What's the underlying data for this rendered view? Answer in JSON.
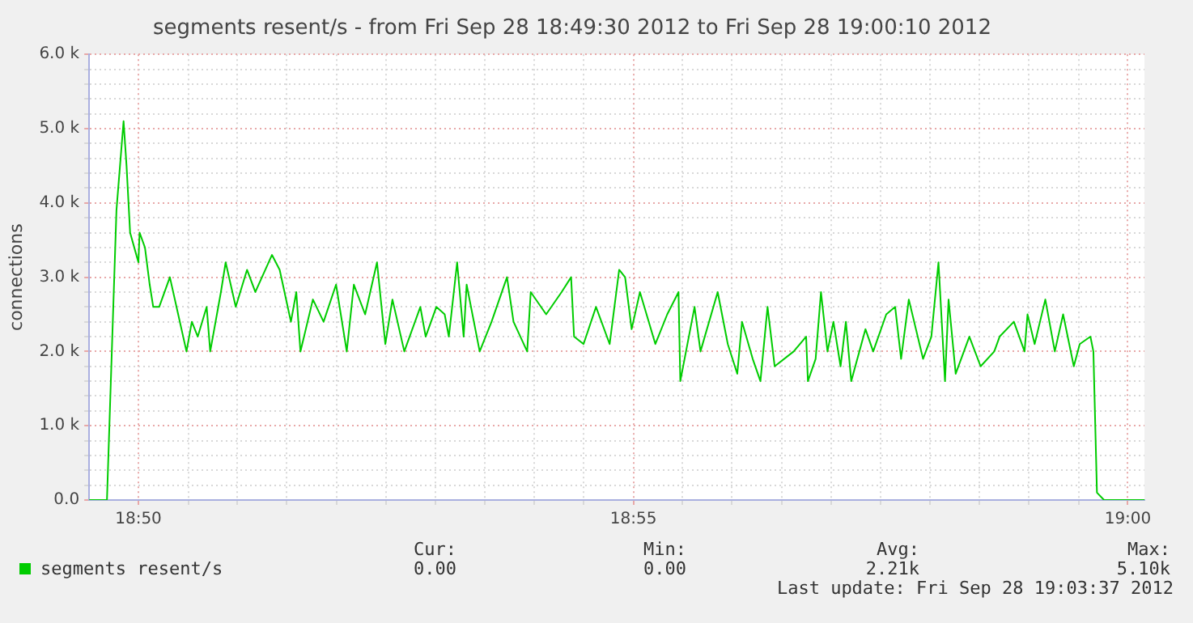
{
  "chart_data": {
    "type": "line",
    "title": "segments resent/s - from Fri Sep 28 18:49:30 2012 to Fri Sep 28 19:00:10 2012",
    "ylabel": "connections",
    "legend": "bottom left",
    "grid": true,
    "marker": "none",
    "line_style": "solid",
    "xlim": [
      18.825,
      19.0028
    ],
    "xticks": [
      {
        "value": 18.8333,
        "label": "18:50"
      },
      {
        "value": 18.8417,
        "label": null
      },
      {
        "value": 18.85,
        "label": null
      },
      {
        "value": 18.8583,
        "label": null
      },
      {
        "value": 18.8667,
        "label": null
      },
      {
        "value": 18.875,
        "label": null
      },
      {
        "value": 18.8833,
        "label": null
      },
      {
        "value": 18.8917,
        "label": null
      },
      {
        "value": 18.9,
        "label": null
      },
      {
        "value": 18.9083,
        "label": null
      },
      {
        "value": 18.9167,
        "label": "18:55"
      },
      {
        "value": 18.925,
        "label": null
      },
      {
        "value": 18.9333,
        "label": null
      },
      {
        "value": 18.9417,
        "label": null
      },
      {
        "value": 18.95,
        "label": null
      },
      {
        "value": 18.9583,
        "label": null
      },
      {
        "value": 18.9667,
        "label": null
      },
      {
        "value": 18.975,
        "label": null
      },
      {
        "value": 18.9833,
        "label": null
      },
      {
        "value": 18.9917,
        "label": null
      },
      {
        "value": 19.0,
        "label": "19:00"
      }
    ],
    "ylim": [
      0,
      6000
    ],
    "yticks": [
      {
        "value": 0,
        "label": "0.0"
      },
      {
        "value": 200,
        "label": null
      },
      {
        "value": 400,
        "label": null
      },
      {
        "value": 600,
        "label": null
      },
      {
        "value": 800,
        "label": null
      },
      {
        "value": 1000,
        "label": "1.0 k"
      },
      {
        "value": 1200,
        "label": null
      },
      {
        "value": 1400,
        "label": null
      },
      {
        "value": 1600,
        "label": null
      },
      {
        "value": 1800,
        "label": null
      },
      {
        "value": 2000,
        "label": "2.0 k"
      },
      {
        "value": 2200,
        "label": null
      },
      {
        "value": 2400,
        "label": null
      },
      {
        "value": 2600,
        "label": null
      },
      {
        "value": 2800,
        "label": null
      },
      {
        "value": 3000,
        "label": "3.0 k"
      },
      {
        "value": 3200,
        "label": null
      },
      {
        "value": 3400,
        "label": null
      },
      {
        "value": 3600,
        "label": null
      },
      {
        "value": 3800,
        "label": null
      },
      {
        "value": 4000,
        "label": "4.0 k"
      },
      {
        "value": 4200,
        "label": null
      },
      {
        "value": 4400,
        "label": null
      },
      {
        "value": 4600,
        "label": null
      },
      {
        "value": 4800,
        "label": null
      },
      {
        "value": 5000,
        "label": "5.0 k"
      },
      {
        "value": 5200,
        "label": null
      },
      {
        "value": 5400,
        "label": null
      },
      {
        "value": 5600,
        "label": null
      },
      {
        "value": 5800,
        "label": null
      },
      {
        "value": 6000,
        "label": "6.0 k"
      }
    ],
    "series": [
      {
        "name": "segments resent/s",
        "color": "#00cc00",
        "x": [
          18.825,
          18.828,
          18.8296,
          18.8308,
          18.8313,
          18.8319,
          18.8326,
          18.8333,
          18.8335,
          18.8344,
          18.8352,
          18.8358,
          18.8368,
          18.8386,
          18.84,
          18.8414,
          18.8423,
          18.8433,
          18.8448,
          18.8454,
          18.8472,
          18.848,
          18.8497,
          18.8516,
          18.853,
          18.8558,
          18.8571,
          18.859,
          18.8599,
          18.8606,
          18.8627,
          18.8645,
          18.8666,
          18.8684,
          18.8696,
          18.8715,
          18.8735,
          18.8749,
          18.8761,
          18.8781,
          18.8808,
          18.8817,
          18.8835,
          18.8849,
          18.8856,
          18.887,
          18.8881,
          18.8886,
          18.8908,
          18.8928,
          18.8954,
          18.8965,
          18.8988,
          18.8994,
          18.902,
          18.9046,
          18.9062,
          18.9067,
          18.9083,
          18.9104,
          18.9127,
          18.9143,
          18.9153,
          18.9164,
          18.9178,
          18.9204,
          18.9224,
          18.9243,
          18.9246,
          18.927,
          18.928,
          18.9309,
          18.9326,
          18.9342,
          18.935,
          18.9368,
          18.9381,
          18.9393,
          18.9405,
          18.9437,
          18.9458,
          18.9461,
          18.9474,
          18.9483,
          18.9494,
          18.9504,
          18.9516,
          18.9525,
          18.9534,
          18.9558,
          18.9571,
          18.9593,
          18.9608,
          18.9618,
          18.9631,
          18.9655,
          18.9669,
          18.9681,
          18.9692,
          18.9698,
          18.971,
          18.9733,
          18.9752,
          18.9775,
          18.9784,
          18.9808,
          18.9826,
          18.9831,
          18.9843,
          18.9861,
          18.9877,
          18.9891,
          18.9909,
          18.9919,
          18.9937,
          18.9942,
          18.9948,
          18.996,
          19.0028
        ],
        "values": [
          0,
          0,
          3900,
          5100,
          4500,
          3600,
          3400,
          3200,
          3600,
          3400,
          2900,
          2600,
          2600,
          3000,
          2500,
          2000,
          2400,
          2200,
          2600,
          2000,
          2800,
          3200,
          2600,
          3100,
          2800,
          3300,
          3100,
          2400,
          2800,
          2000,
          2700,
          2400,
          2900,
          2000,
          2900,
          2500,
          3200,
          2100,
          2700,
          2000,
          2600,
          2200,
          2600,
          2500,
          2200,
          3200,
          2200,
          2900,
          2000,
          2400,
          3000,
          2400,
          2000,
          2800,
          2500,
          2800,
          3000,
          2200,
          2100,
          2600,
          2100,
          3100,
          3000,
          2300,
          2800,
          2100,
          2500,
          2800,
          1600,
          2600,
          2000,
          2800,
          2100,
          1700,
          2400,
          1900,
          1600,
          2600,
          1800,
          2000,
          2200,
          1600,
          1900,
          2800,
          2000,
          2400,
          1800,
          2400,
          1600,
          2300,
          2000,
          2500,
          2600,
          1900,
          2700,
          1900,
          2200,
          3200,
          1600,
          2700,
          1700,
          2200,
          1800,
          2000,
          2200,
          2400,
          2000,
          2500,
          2100,
          2700,
          2000,
          2500,
          1800,
          2100,
          2200,
          2000,
          100,
          0,
          0
        ]
      }
    ],
    "annotations": [
      "Cur:",
      "Min:",
      "Avg:",
      "Max:",
      "0.00",
      "0.00",
      "2.21k",
      "5.10k",
      "Last update: Fri Sep 28 19:03:37 2012"
    ]
  }
}
